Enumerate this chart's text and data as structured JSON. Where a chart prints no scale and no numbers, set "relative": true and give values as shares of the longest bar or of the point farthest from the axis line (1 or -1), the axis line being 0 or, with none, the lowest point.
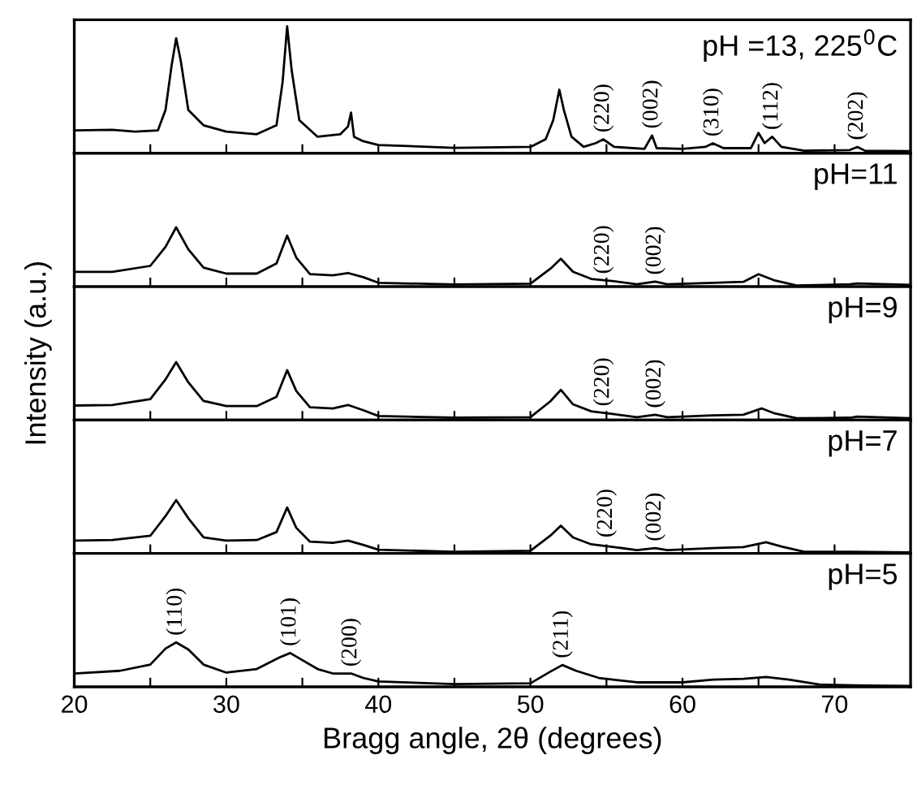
{
  "chart_data": [
    {
      "type": "line",
      "title": "pH =13, 225$^{0}$C",
      "relative": true,
      "color": "#000000",
      "tick_labels": false,
      "xlim": [
        20,
        75
      ],
      "xticks": [
        20,
        {
          "value": 25,
          "label": null
        },
        30,
        {
          "value": 35,
          "label": null
        },
        40,
        {
          "value": 45,
          "label": null
        },
        50,
        {
          "value": 55,
          "label": null
        },
        60,
        {
          "value": 65,
          "label": null
        },
        70
      ],
      "x": [
        20,
        22.5,
        24,
        25.5,
        26.0,
        26.4,
        26.7,
        27.0,
        27.5,
        28.5,
        30,
        32,
        33.3,
        33.7,
        34.0,
        34.3,
        34.8,
        36,
        37.5,
        38.0,
        38.2,
        38.4,
        39,
        40,
        45,
        50,
        51.0,
        51.5,
        51.9,
        52.2,
        52.7,
        53.5,
        54.3,
        54.8,
        55.5,
        57.5,
        58.0,
        58.3,
        60,
        61.5,
        62.0,
        62.7,
        64.5,
        65.0,
        65.4,
        65.9,
        66.5,
        68,
        71,
        71.5,
        72,
        75
      ],
      "values": [
        0.18,
        0.185,
        0.17,
        0.18,
        0.34,
        0.69,
        0.905,
        0.73,
        0.34,
        0.22,
        0.17,
        0.15,
        0.22,
        0.56,
        1.0,
        0.65,
        0.26,
        0.13,
        0.15,
        0.21,
        0.32,
        0.13,
        0.095,
        0.065,
        0.043,
        0.05,
        0.11,
        0.26,
        0.5,
        0.34,
        0.13,
        0.05,
        0.08,
        0.11,
        0.05,
        0.035,
        0.14,
        0.04,
        0.035,
        0.05,
        0.078,
        0.04,
        0.04,
        0.16,
        0.08,
        0.13,
        0.05,
        0.02,
        0.025,
        0.05,
        0.02,
        0.017
      ],
      "annotations": [
        {
          "text": "(220)",
          "x": 54.8,
          "y": 0.11
        },
        {
          "text": "(002)",
          "x": 58.0,
          "y": 0.14
        },
        {
          "text": "(310)",
          "x": 62.0,
          "y": 0.078
        },
        {
          "text": "(112)",
          "x": 65.9,
          "y": 0.13
        },
        {
          "text": "(202)",
          "x": 71.5,
          "y": 0.05
        }
      ]
    },
    {
      "type": "line",
      "title": "pH=11",
      "relative": true,
      "color": "#000000",
      "tick_labels": false,
      "xlim": [
        20,
        75
      ],
      "xticks": [
        20,
        {
          "value": 25,
          "label": null
        },
        30,
        {
          "value": 35,
          "label": null
        },
        40,
        {
          "value": 45,
          "label": null
        },
        50,
        {
          "value": 55,
          "label": null
        },
        60,
        {
          "value": 65,
          "label": null
        },
        70
      ],
      "x": [
        20,
        22.5,
        25,
        26.0,
        26.7,
        27.5,
        28.5,
        30,
        32,
        33.3,
        34.0,
        34.6,
        35.5,
        37,
        38,
        39,
        40,
        45,
        50,
        51.3,
        52.0,
        52.8,
        54,
        55.5,
        57,
        58.2,
        59,
        62,
        64,
        65.0,
        66,
        67.5,
        71,
        71.5,
        75
      ],
      "values": [
        0.25,
        0.25,
        0.35,
        0.67,
        1.0,
        0.63,
        0.32,
        0.22,
        0.22,
        0.39,
        0.86,
        0.49,
        0.21,
        0.19,
        0.23,
        0.16,
        0.065,
        0.037,
        0.05,
        0.3,
        0.47,
        0.25,
        0.13,
        0.09,
        0.04,
        0.084,
        0.04,
        0.065,
        0.08,
        0.21,
        0.11,
        0.02,
        0.04,
        0.055,
        0.03
      ],
      "annotations": [
        {
          "text": "(220)",
          "x": 54.8,
          "y": 0.1
        },
        {
          "text": "(002)",
          "x": 58.2,
          "y": 0.084
        }
      ]
    },
    {
      "type": "line",
      "title": "pH=9",
      "relative": true,
      "color": "#000000",
      "tick_labels": false,
      "xlim": [
        20,
        75
      ],
      "xticks": [
        20,
        {
          "value": 25,
          "label": null
        },
        30,
        {
          "value": 35,
          "label": null
        },
        40,
        {
          "value": 45,
          "label": null
        },
        50,
        {
          "value": 55,
          "label": null
        },
        60,
        {
          "value": 65,
          "label": null
        },
        70
      ],
      "ylabel": "Intensity (a.u.)",
      "x": [
        20,
        22.5,
        25,
        26.0,
        26.7,
        27.5,
        28.5,
        30,
        32,
        33.3,
        34.0,
        34.6,
        35.5,
        37,
        38,
        39,
        40,
        45,
        50,
        51.3,
        52.0,
        52.8,
        54,
        55.5,
        57,
        58.2,
        59,
        62,
        64,
        65.2,
        66,
        67.5,
        71,
        71.5,
        75
      ],
      "values": [
        0.25,
        0.26,
        0.36,
        0.7,
        1.0,
        0.65,
        0.33,
        0.24,
        0.24,
        0.4,
        0.86,
        0.5,
        0.22,
        0.2,
        0.26,
        0.17,
        0.07,
        0.04,
        0.05,
        0.32,
        0.52,
        0.27,
        0.15,
        0.1,
        0.05,
        0.09,
        0.05,
        0.08,
        0.09,
        0.2,
        0.12,
        0.03,
        0.04,
        0.06,
        0.03
      ],
      "annotations": [
        {
          "text": "(220)",
          "x": 54.8,
          "y": 0.12
        },
        {
          "text": "(002)",
          "x": 58.2,
          "y": 0.09
        }
      ]
    },
    {
      "type": "line",
      "title": "pH=7",
      "relative": true,
      "color": "#000000",
      "tick_labels": false,
      "xlim": [
        20,
        75
      ],
      "xticks": [
        20,
        {
          "value": 25,
          "label": null
        },
        30,
        {
          "value": 35,
          "label": null
        },
        40,
        {
          "value": 45,
          "label": null
        },
        50,
        {
          "value": 55,
          "label": null
        },
        60,
        {
          "value": 65,
          "label": null
        },
        70
      ],
      "x": [
        20,
        22.5,
        25,
        26.0,
        26.7,
        27.5,
        28.5,
        30,
        32,
        33.3,
        34.0,
        34.6,
        35.5,
        37,
        38,
        39,
        40,
        45,
        50,
        51.3,
        52.0,
        52.8,
        54,
        55.5,
        57,
        58.2,
        59,
        62,
        64,
        65.5,
        66.5,
        68,
        71,
        75
      ],
      "values": [
        0.24,
        0.25,
        0.33,
        0.7,
        1.0,
        0.66,
        0.3,
        0.24,
        0.25,
        0.4,
        0.86,
        0.48,
        0.22,
        0.2,
        0.24,
        0.16,
        0.07,
        0.03,
        0.05,
        0.33,
        0.52,
        0.3,
        0.17,
        0.12,
        0.06,
        0.1,
        0.06,
        0.1,
        0.12,
        0.21,
        0.13,
        0.03,
        0.03,
        0.02
      ],
      "annotations": [
        {
          "text": "(220)",
          "x": 55.0,
          "y": 0.17
        },
        {
          "text": "(002)",
          "x": 58.2,
          "y": 0.1
        }
      ]
    },
    {
      "type": "line",
      "title": "pH=5",
      "relative": true,
      "color": "#000000",
      "tick_labels": "x",
      "xlim": [
        20,
        75
      ],
      "xticks": [
        20,
        {
          "value": 25,
          "label": null
        },
        30,
        {
          "value": 35,
          "label": null
        },
        40,
        {
          "value": 45,
          "label": null
        },
        50,
        {
          "value": 55,
          "label": null
        },
        60,
        {
          "value": 65,
          "label": null
        },
        70
      ],
      "xlabel": "Bragg angle, 2θ (degrees)",
      "x": [
        20,
        23,
        25,
        26.0,
        26.7,
        27.5,
        28.5,
        30,
        32,
        33.5,
        34.2,
        35,
        36,
        37,
        38.2,
        39,
        40,
        45,
        50,
        51.3,
        52.1,
        53,
        54.5,
        57,
        60,
        62,
        64,
        65.5,
        67,
        69,
        72,
        75
      ],
      "values": [
        0.3,
        0.36,
        0.5,
        0.86,
        1.0,
        0.84,
        0.5,
        0.32,
        0.4,
        0.66,
        0.76,
        0.6,
        0.4,
        0.3,
        0.3,
        0.2,
        0.12,
        0.06,
        0.08,
        0.34,
        0.49,
        0.36,
        0.2,
        0.1,
        0.1,
        0.16,
        0.18,
        0.22,
        0.16,
        0.05,
        0.03,
        0.02
      ],
      "annotations": [
        {
          "text": "(110)",
          "x": 26.7,
          "y": 1.0
        },
        {
          "text": "(101)",
          "x": 34.2,
          "y": 0.76
        },
        {
          "text": "(200)",
          "x": 38.2,
          "y": 0.3
        },
        {
          "text": "(211)",
          "x": 52.1,
          "y": 0.49
        }
      ]
    }
  ]
}
